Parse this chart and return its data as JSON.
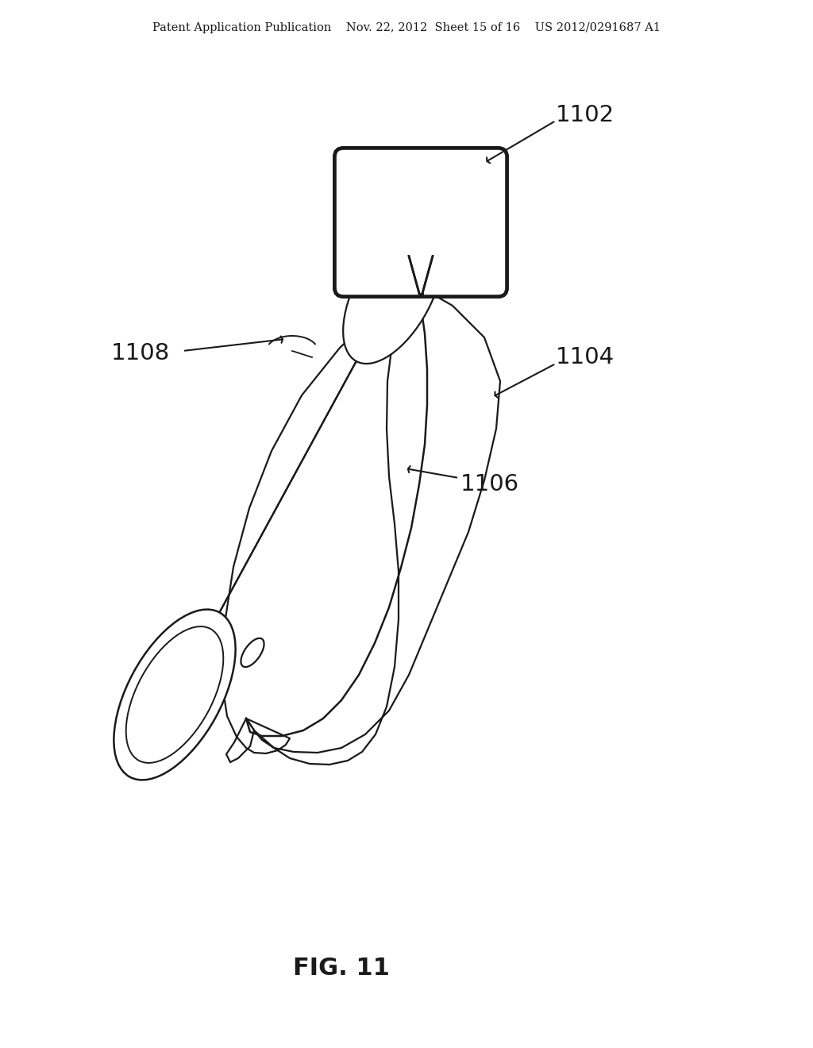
{
  "bg_color": "#ffffff",
  "line_color": "#1a1a1a",
  "header_text": "Patent Application Publication    Nov. 22, 2012  Sheet 15 of 16    US 2012/0291687 A1",
  "header_fontsize": 10.5,
  "fig_label": "FIG. 11",
  "fig_label_fontsize": 22,
  "label_fontsize": 21,
  "lw_main": 1.6,
  "lw_thick": 2.8
}
